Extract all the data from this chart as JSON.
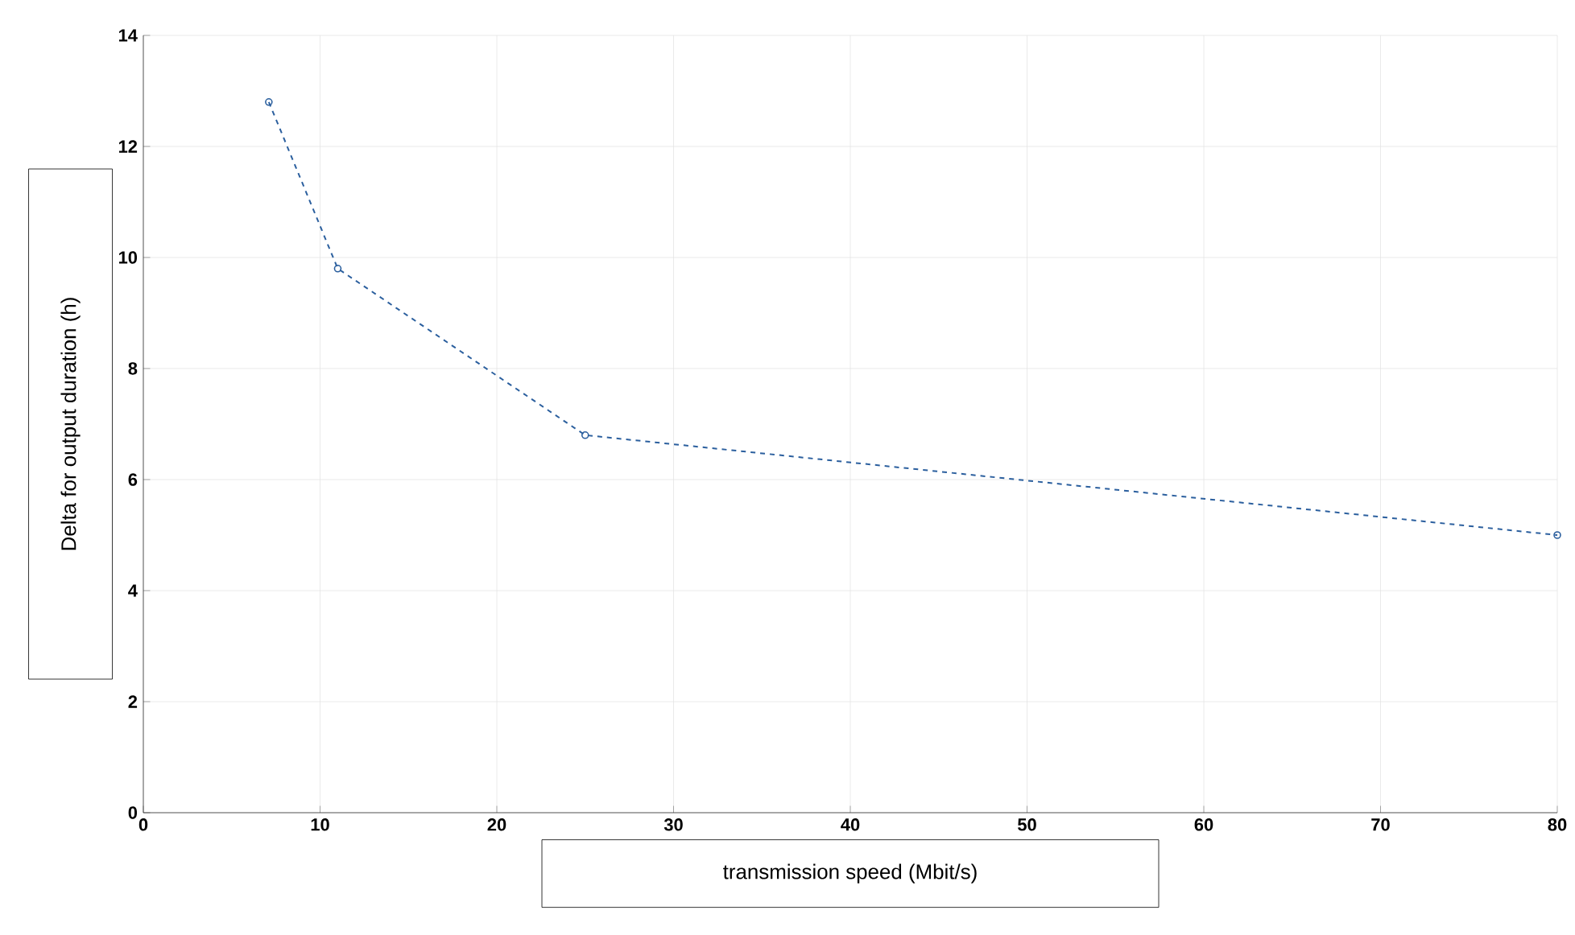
{
  "chart_data": {
    "type": "line",
    "xlabel": "transmission speed (Mbit/s)",
    "ylabel": "Delta for output duration (h)",
    "x": [
      7.1,
      11,
      25,
      80
    ],
    "series": [
      {
        "color": "#2b5f9e",
        "values": [
          12.8,
          9.8,
          6.8,
          5.0
        ]
      }
    ],
    "xlim": [
      0,
      80
    ],
    "xticks": [
      0,
      10,
      20,
      30,
      40,
      50,
      60,
      70,
      80
    ],
    "ylim": [
      0,
      14
    ],
    "yticks": [
      0,
      2,
      4,
      6,
      8,
      10,
      12,
      14
    ],
    "grid": true,
    "marker": "circle",
    "line_style": "dashed"
  }
}
